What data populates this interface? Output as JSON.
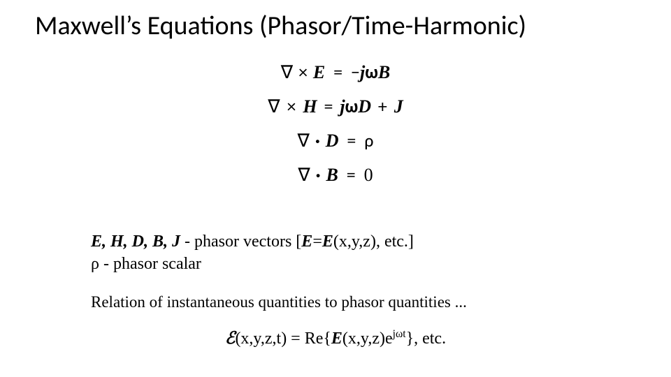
{
  "title": "Maxwell’s Equations (Phasor/Time-Harmonic)",
  "equations": {
    "eq1": {
      "nabla": "∇",
      "op": "×",
      "lhs": "E",
      "eq": "=",
      "rhs_prefix": "−",
      "j": "j",
      "omega": "ω",
      "rhs_vec": "B"
    },
    "eq2": {
      "nabla": "∇",
      "op": "×",
      "lhs": "H",
      "eq": "=",
      "j": "j",
      "omega": "ω",
      "rhs_vec": "D",
      "plus": "+",
      "J": "J"
    },
    "eq3": {
      "nabla": "∇",
      "op": "·",
      "lhs": "D",
      "eq": "=",
      "rhs": "ρ"
    },
    "eq4": {
      "nabla": "∇",
      "op": "·",
      "lhs": "B",
      "eq": "=",
      "rhs": "0"
    }
  },
  "notes": {
    "line1_vectors": "E, H, D, B, J",
    "line1_rest": " - phasor vectors [",
    "line1_Eeq": "E",
    "line1_eq": "=",
    "line1_Efn": "E",
    "line1_args": "(x,y,z), etc.]",
    "line2_rho": "ρ",
    "line2_rest": " - phasor scalar"
  },
  "relation": "Relation of instantaneous quantities to phasor quantities ...",
  "relation_eq": {
    "scriptE": "ℰ",
    "args1": "(x,y,z,t) = Re{",
    "E": "E",
    "args2": "(x,y,z)e",
    "exp": "jωt",
    "close": "}, etc."
  },
  "style": {
    "background_color": "#ffffff",
    "text_color": "#000000",
    "title_fontsize": 38,
    "eq_fontsize": 26,
    "notes_fontsize": 24,
    "relation_fontsize": 23
  }
}
